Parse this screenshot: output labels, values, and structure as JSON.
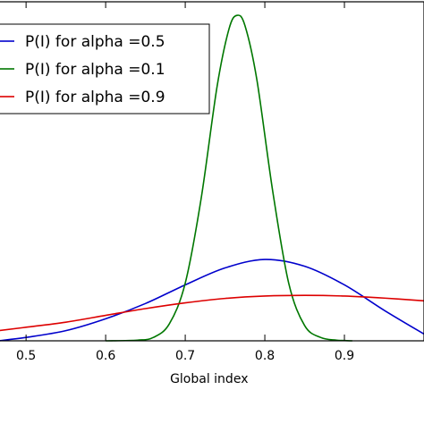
{
  "chart_data": {
    "type": "line",
    "xlabel": "Global index",
    "ylabel": "",
    "title": "",
    "xlim": [
      0.465,
      1.0
    ],
    "ylim": [
      0,
      1.0
    ],
    "x_ticks": [
      0.5,
      0.6,
      0.7,
      0.8,
      0.9
    ],
    "x_tick_labels": [
      "0.5",
      "0.6",
      "0.7",
      "0.8",
      "0.9"
    ],
    "grid": false,
    "legend_position": "top-left",
    "series": [
      {
        "name": "P(I) for alpha =0.5",
        "color": "#0000cc",
        "x": [
          0.465,
          0.5,
          0.55,
          0.6,
          0.65,
          0.7,
          0.75,
          0.8,
          0.85,
          0.9,
          0.95,
          1.0
        ],
        "y": [
          0.0,
          0.01,
          0.03,
          0.065,
          0.11,
          0.165,
          0.215,
          0.24,
          0.22,
          0.165,
          0.09,
          0.02
        ]
      },
      {
        "name": "P(I) for alpha =0.1",
        "color": "#007700",
        "x": [
          0.6,
          0.64,
          0.66,
          0.68,
          0.7,
          0.72,
          0.74,
          0.755,
          0.765,
          0.775,
          0.79,
          0.81,
          0.83,
          0.85,
          0.87,
          0.89,
          0.91
        ],
        "y": [
          0.0,
          0.002,
          0.01,
          0.05,
          0.17,
          0.42,
          0.75,
          0.92,
          0.96,
          0.93,
          0.77,
          0.44,
          0.17,
          0.045,
          0.01,
          0.002,
          0.0
        ]
      },
      {
        "name": "P(I) for alpha =0.9",
        "color": "#dd0000",
        "x": [
          0.465,
          0.5,
          0.55,
          0.6,
          0.65,
          0.7,
          0.75,
          0.8,
          0.85,
          0.9,
          0.95,
          1.0
        ],
        "y": [
          0.03,
          0.04,
          0.055,
          0.075,
          0.095,
          0.112,
          0.125,
          0.132,
          0.134,
          0.132,
          0.126,
          0.118
        ]
      }
    ]
  }
}
